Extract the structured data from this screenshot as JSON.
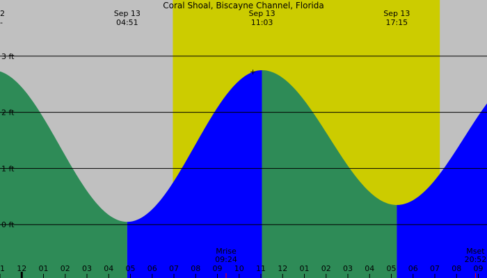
{
  "chart_data": {
    "type": "area",
    "title": "Coral Shoal, Biscayne Channel, Florida",
    "corner_labels": {
      "top_left_number": "2",
      "top_left_dash": "-"
    },
    "colors": {
      "background": "#c0c0c0",
      "daylight": "#cccc00",
      "falling_tide": "#2e8b57",
      "rising_tide": "#0000ff",
      "grid_line": "#000000",
      "moon_marker": "#ff0000"
    },
    "x_axis": {
      "unit": "hour",
      "range": [
        23.0,
        45.4
      ],
      "tick_hours": [
        23,
        24,
        25,
        26,
        27,
        28,
        29,
        30,
        31,
        32,
        33,
        34,
        35,
        36,
        37,
        38,
        39,
        40,
        41,
        42,
        43,
        44,
        45
      ],
      "tick_labels": [
        "11",
        "12",
        "01",
        "02",
        "03",
        "04",
        "05",
        "06",
        "07",
        "08",
        "09",
        "10",
        "11",
        "12",
        "01",
        "02",
        "03",
        "04",
        "05",
        "06",
        "07",
        "08",
        "09"
      ],
      "midnight_hour": 24
    },
    "y_axis": {
      "unit": "ft",
      "range": [
        -0.95,
        4.0
      ],
      "gridlines": [
        {
          "value": 3,
          "label": "3 ft"
        },
        {
          "value": 2,
          "label": "2 ft"
        },
        {
          "value": 1,
          "label": "1 ft"
        },
        {
          "value": 0,
          "label": "0 ft"
        }
      ]
    },
    "daylight": {
      "start_hour": 30.95,
      "end_hour": 43.23
    },
    "tide_extremes": [
      {
        "hour": 28.85,
        "height": 0.05,
        "type": "low",
        "date_label": "Sep 13",
        "time_label": "04:51"
      },
      {
        "hour": 35.05,
        "height": 2.75,
        "type": "high",
        "date_label": "Sep 13",
        "time_label": "11:03"
      },
      {
        "hour": 41.25,
        "height": 0.35,
        "type": "low",
        "date_label": "Sep 13",
        "time_label": "17:15"
      }
    ],
    "curve_endpoints": {
      "start": {
        "hour": 23.0,
        "height": 2.65
      },
      "end": {
        "hour": 45.4,
        "height": 2.25
      }
    },
    "moon_events": [
      {
        "name": "Mrise",
        "time_label": "09:24",
        "hour": 33.4
      },
      {
        "name": "Mset",
        "time_label": "20:52",
        "hour": 44.87
      }
    ],
    "peak_marker": "+"
  }
}
